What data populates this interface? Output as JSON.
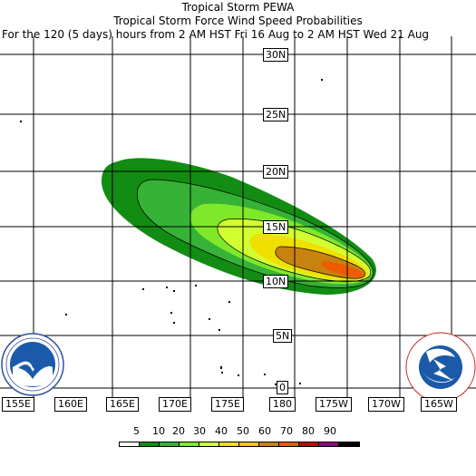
{
  "header": {
    "line1": "Tropical Storm PEWA",
    "line2": "Tropical Storm Force Wind Speed Probabilities",
    "line3": "For the 120 (5 days) hours from 2 AM HST Fri 16 Aug to 2 AM HST Wed 21 Aug"
  },
  "longitude_labels": [
    "155E",
    "160E",
    "165E",
    "170E",
    "175E",
    "180",
    "175W",
    "170W",
    "165W"
  ],
  "latitude_labels": [
    "30N",
    "25N",
    "20N",
    "15N",
    "10N",
    "5N",
    "0"
  ],
  "legend": {
    "values": [
      "5",
      "10",
      "20",
      "30",
      "40",
      "50",
      "60",
      "70",
      "80",
      "90"
    ],
    "colors": [
      "#ffffff",
      "#128c12",
      "#36b236",
      "#80e82a",
      "#d2ff32",
      "#f0e000",
      "#f0c800",
      "#c8820e",
      "#f05a00",
      "#c80000",
      "#8c0a78",
      "#000000"
    ]
  },
  "logos": {
    "noaa_text": "NOAA",
    "noaa_ring": "NATIONAL OCEANIC AND ATMOSPHERIC ADMINISTRATION • U.S. DEPARTMENT OF COMMERCE •",
    "nws_ring": "NATIONAL WEATHER SERVICE"
  },
  "probability_bands": {
    "colors": [
      "#128c12",
      "#36b236",
      "#80e82a",
      "#d2ff32",
      "#f0e000",
      "#c8820e",
      "#f05a00"
    ]
  }
}
